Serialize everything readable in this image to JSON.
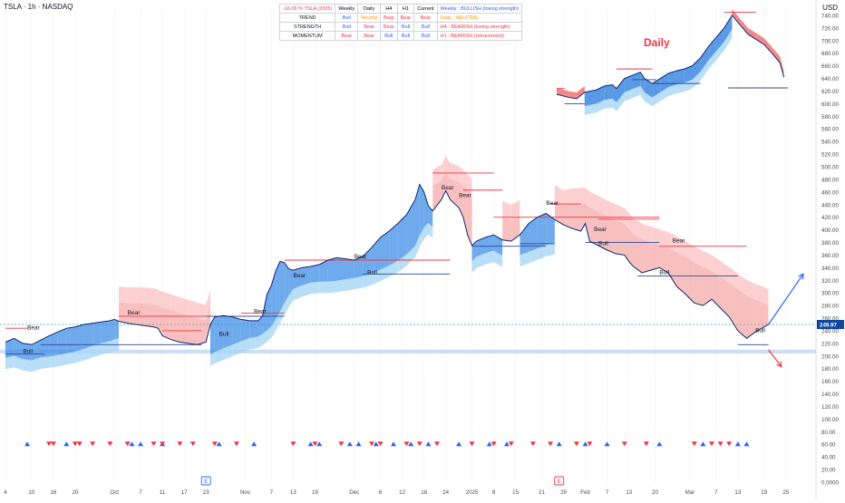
{
  "header": {
    "symbol_line": "TSLA · 1h · NASDAQ",
    "currency": "USD"
  },
  "dashboard": {
    "header_row": [
      "-16.06 % TSLA (2025)",
      "Weekly",
      "Daily",
      "H4",
      "H1",
      "Current",
      "Weekly : BULLISH (losing strength)"
    ],
    "rows": [
      {
        "label": "TREND",
        "cells": [
          "Bull",
          "Neutral",
          "Bear",
          "Bear",
          "Bear"
        ],
        "note": "Daily : NEUTRAL"
      },
      {
        "label": "STRENGTH",
        "cells": [
          "Bull",
          "Bear",
          "Bear",
          "Bull",
          "Bull"
        ],
        "note": "H4 : BEARISH (losing strength)"
      },
      {
        "label": "MOMENTUM",
        "cells": [
          "Bear",
          "Bear",
          "Bull",
          "Bull",
          "Bull"
        ],
        "note": "H1 : BEARISH (retracement)"
      }
    ],
    "colors": {
      "Bull": "#2962ff",
      "Bear": "#f23645",
      "Neutral": "#ff9800",
      "header_red": "#f23645",
      "header_blue": "#2962ff"
    }
  },
  "inset": {
    "label": "Daily"
  },
  "event_markers": [
    "E",
    "E"
  ],
  "chart_data": {
    "type": "line",
    "title": "",
    "price_axis": {
      "ylim": [
        0,
        750
      ],
      "ticks": [
        0,
        20,
        40,
        60,
        80,
        100,
        120,
        140,
        160,
        180,
        200,
        220,
        240,
        260,
        280,
        300,
        320,
        340,
        360,
        380,
        400,
        420,
        440,
        460,
        480,
        500,
        520,
        540,
        560,
        580,
        600,
        620,
        640,
        660,
        680,
        700,
        720,
        740
      ],
      "tick_labels": [
        "0.0000",
        "20.00",
        "40.00",
        "60.00",
        "80.00",
        "100.00",
        "120.00",
        "140.00",
        "160.00",
        "180.00",
        "200.00",
        "220.00",
        "240.00",
        "260.00",
        "280.00",
        "300.00",
        "320.00",
        "340.00",
        "360.00",
        "380.00",
        "400.00",
        "420.00",
        "440.00",
        "460.00",
        "480.00",
        "500.00",
        "520.00",
        "540.00",
        "560.00",
        "580.00",
        "600.00",
        "620.00",
        "640.00",
        "660.00",
        "680.00",
        "700.00",
        "720.00",
        "740.00"
      ]
    },
    "time_axis": {
      "ticks": [
        "4",
        "10",
        "16",
        "20",
        "Oct",
        "7",
        "11",
        "17",
        "23",
        "Nov",
        "7",
        "13",
        "19",
        "Dec",
        "6",
        "12",
        "18",
        "24",
        "2025",
        "8",
        "15",
        "21",
        "29",
        "Feb",
        "7",
        "13",
        "20",
        "Mar",
        "7",
        "13",
        "19",
        "25"
      ],
      "tick_index": [
        0,
        6,
        11,
        16,
        25,
        31,
        36,
        41,
        46,
        55,
        61,
        66,
        71,
        80,
        86,
        91,
        96,
        101,
        107,
        112,
        117,
        123,
        128,
        133,
        138,
        143,
        149,
        157,
        163,
        168,
        174,
        179
      ]
    },
    "x_range": [
      0,
      179
    ],
    "series": [
      {
        "values": [
          [
            0,
            222
          ],
          [
            2,
            228
          ],
          [
            4,
            220
          ],
          [
            6,
            218
          ],
          [
            8,
            225
          ],
          [
            10,
            232
          ],
          [
            12,
            238
          ],
          [
            14,
            244
          ],
          [
            16,
            246
          ],
          [
            18,
            250
          ],
          [
            20,
            252
          ],
          [
            22,
            254
          ],
          [
            24,
            256
          ],
          [
            25,
            258
          ],
          [
            26,
            255
          ],
          [
            28,
            252
          ],
          [
            30,
            250
          ],
          [
            32,
            248
          ],
          [
            34,
            246
          ],
          [
            35,
            244
          ],
          [
            36,
            232
          ],
          [
            38,
            226
          ],
          [
            40,
            222
          ],
          [
            42,
            220
          ],
          [
            44,
            218
          ],
          [
            46,
            222
          ],
          [
            47,
            250
          ],
          [
            48,
            262
          ],
          [
            50,
            264
          ],
          [
            52,
            262
          ],
          [
            54,
            258
          ],
          [
            56,
            256
          ],
          [
            58,
            256
          ],
          [
            59,
            264
          ],
          [
            60,
            298
          ],
          [
            61,
            312
          ],
          [
            62,
            335
          ],
          [
            63,
            350
          ],
          [
            64,
            348
          ],
          [
            65,
            338
          ],
          [
            66,
            336
          ],
          [
            68,
            340
          ],
          [
            70,
            342
          ],
          [
            72,
            345
          ],
          [
            74,
            352
          ],
          [
            76,
            356
          ],
          [
            78,
            354
          ],
          [
            80,
            352
          ],
          [
            82,
            358
          ],
          [
            84,
            372
          ],
          [
            86,
            388
          ],
          [
            88,
            398
          ],
          [
            90,
            410
          ],
          [
            92,
            424
          ],
          [
            94,
            448
          ],
          [
            95,
            472
          ],
          [
            96,
            460
          ],
          [
            97,
            438
          ],
          [
            98,
            430
          ],
          [
            100,
            448
          ],
          [
            101,
            462
          ],
          [
            102,
            448
          ],
          [
            104,
            435
          ],
          [
            105,
            420
          ],
          [
            106,
            392
          ],
          [
            107,
            375
          ],
          [
            108,
            382
          ],
          [
            110,
            388
          ],
          [
            112,
            392
          ],
          [
            114,
            384
          ],
          [
            116,
            382
          ],
          [
            118,
            392
          ],
          [
            120,
            410
          ],
          [
            122,
            420
          ],
          [
            124,
            426
          ],
          [
            126,
            416
          ],
          [
            128,
            408
          ],
          [
            130,
            402
          ],
          [
            132,
            398
          ],
          [
            133,
            410
          ],
          [
            134,
            382
          ],
          [
            136,
            375
          ],
          [
            138,
            368
          ],
          [
            140,
            362
          ],
          [
            142,
            360
          ],
          [
            143,
            350
          ],
          [
            144,
            342
          ],
          [
            146,
            332
          ],
          [
            148,
            336
          ],
          [
            150,
            340
          ],
          [
            152,
            332
          ],
          [
            154,
            310
          ],
          [
            156,
            298
          ],
          [
            158,
            284
          ],
          [
            160,
            280
          ],
          [
            162,
            290
          ],
          [
            164,
            276
          ],
          [
            166,
            262
          ],
          [
            168,
            240
          ],
          [
            170,
            228
          ],
          [
            172,
            238
          ],
          [
            174,
            246
          ],
          [
            175,
            250
          ]
        ]
      }
    ],
    "levels_bear": [
      {
        "x": [
          0,
          5
        ],
        "y": 244
      },
      {
        "x": [
          26,
          58
        ],
        "y": 263
      },
      {
        "x": [
          36,
          45
        ],
        "y": 240
      },
      {
        "x": [
          54,
          64
        ],
        "y": 268
      },
      {
        "x": [
          64,
          102
        ],
        "y": 352
      },
      {
        "x": [
          98,
          112
        ],
        "y": 490
      },
      {
        "x": [
          105,
          114
        ],
        "y": 463
      },
      {
        "x": [
          112,
          150
        ],
        "y": 420
      },
      {
        "x": [
          125,
          132
        ],
        "y": 441
      },
      {
        "x": [
          136,
          150
        ],
        "y": 417
      },
      {
        "x": [
          150,
          170
        ],
        "y": 374
      }
    ],
    "levels_bull": [
      {
        "x": [
          0,
          9
        ],
        "y": 203
      },
      {
        "x": [
          8,
          45
        ],
        "y": 218
      },
      {
        "x": [
          46,
          64
        ],
        "y": 263
      },
      {
        "x": [
          82,
          102
        ],
        "y": 330
      },
      {
        "x": [
          107,
          124
        ],
        "y": 374
      },
      {
        "x": [
          118,
          126
        ],
        "y": 378
      },
      {
        "x": [
          133,
          150
        ],
        "y": 380
      },
      {
        "x": [
          145,
          168
        ],
        "y": 327
      },
      {
        "x": [
          168,
          175
        ],
        "y": 218
      }
    ],
    "annotations": {
      "bear_labels": [
        [
          5,
          242
        ],
        [
          28,
          266
        ],
        [
          57,
          268
        ],
        [
          66,
          325
        ],
        [
          80,
          355
        ],
        [
          100,
          464
        ],
        [
          104,
          452
        ],
        [
          124,
          440
        ],
        [
          135,
          398
        ],
        [
          153,
          380
        ]
      ],
      "bull_labels": [
        [
          4,
          205
        ],
        [
          49,
          232
        ],
        [
          83,
          330
        ],
        [
          136,
          376
        ],
        [
          150,
          330
        ],
        [
          172,
          238
        ]
      ],
      "current_price": 249.97,
      "current_price_label": "249.97",
      "support_zone": [
        204,
        210
      ],
      "projection_up": [
        [
          175,
          250
        ],
        [
          180,
          300
        ],
        [
          183,
          330
        ]
      ],
      "projection_down": [
        [
          175,
          210
        ],
        [
          178,
          183
        ]
      ]
    },
    "signal_row": {
      "up": [
        5,
        14,
        29,
        31,
        36,
        49,
        57,
        70,
        72,
        79,
        81,
        85,
        89,
        93,
        97,
        104,
        111,
        115,
        127,
        133,
        138,
        150,
        160,
        168,
        170
      ],
      "down": [
        10,
        11,
        16,
        17,
        20,
        24,
        28,
        34,
        36,
        40,
        43,
        48,
        53,
        66,
        71,
        77,
        84,
        86,
        92,
        95,
        99,
        107,
        112,
        116,
        121,
        125,
        131,
        134,
        142,
        147,
        158,
        162,
        164,
        166
      ]
    },
    "inset_chart": {
      "ylim": [
        600,
        750
      ],
      "ticks_shown": [
        600,
        620,
        640,
        660,
        680,
        700,
        720,
        740
      ],
      "values": [
        [
          0,
          615
        ],
        [
          6,
          610
        ],
        [
          10,
          608
        ],
        [
          14,
          618
        ],
        [
          20,
          622
        ],
        [
          24,
          628
        ],
        [
          28,
          630
        ],
        [
          30,
          624
        ],
        [
          34,
          640
        ],
        [
          38,
          645
        ],
        [
          42,
          650
        ],
        [
          44,
          640
        ],
        [
          48,
          632
        ],
        [
          52,
          640
        ],
        [
          56,
          648
        ],
        [
          60,
          652
        ],
        [
          64,
          655
        ],
        [
          68,
          660
        ],
        [
          72,
          672
        ],
        [
          76,
          690
        ],
        [
          80,
          705
        ],
        [
          84,
          720
        ],
        [
          88,
          740
        ],
        [
          92,
          725
        ],
        [
          96,
          710
        ],
        [
          100,
          702
        ],
        [
          104,
          694
        ],
        [
          108,
          680
        ],
        [
          112,
          665
        ],
        [
          114,
          642
        ]
      ],
      "levels_bear": [
        {
          "x": [
            0,
            4
          ],
          "y": 624
        },
        {
          "x": [
            30,
            48
          ],
          "y": 655
        },
        {
          "x": [
            84,
            100
          ],
          "y": 745
        }
      ],
      "levels_bull": [
        {
          "x": [
            4,
            14
          ],
          "y": 600
        },
        {
          "x": [
            38,
            50
          ],
          "y": 638
        },
        {
          "x": [
            48,
            72
          ],
          "y": 632
        },
        {
          "x": [
            86,
            116
          ],
          "y": 625
        }
      ]
    }
  }
}
